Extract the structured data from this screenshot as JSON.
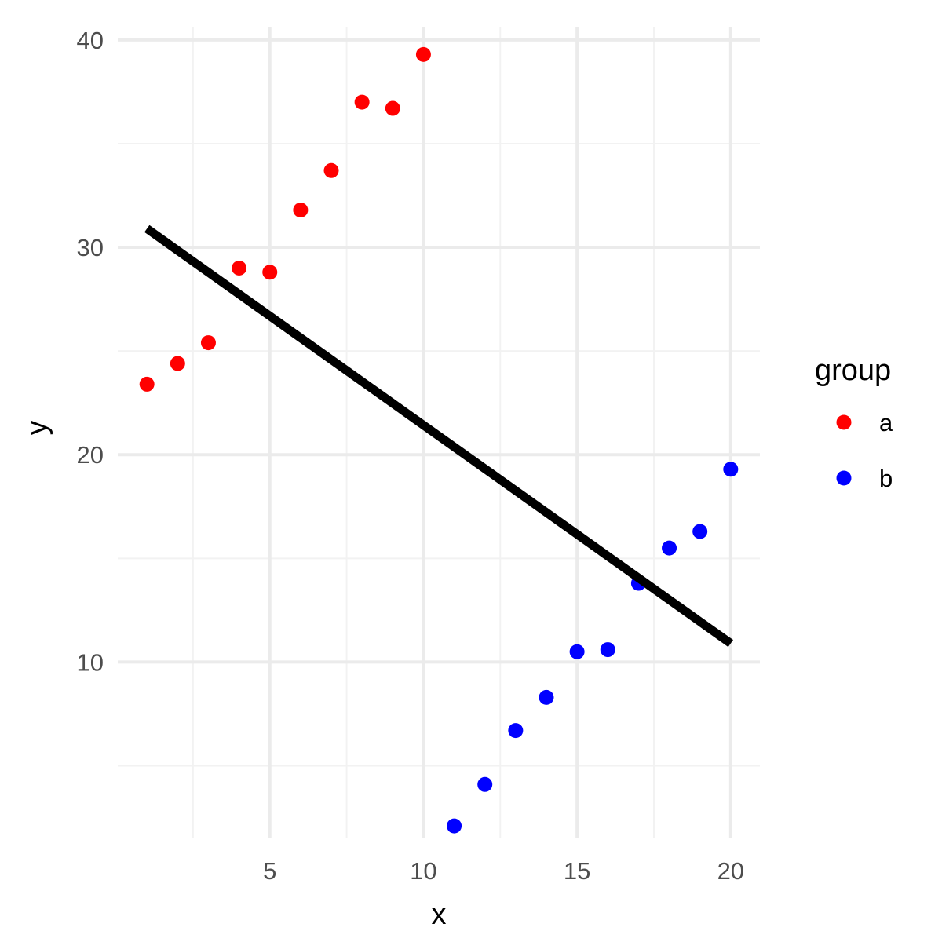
{
  "chart_data": {
    "type": "scatter",
    "xlabel": "x",
    "ylabel": "y",
    "xlim": [
      0.05,
      20.95
    ],
    "ylim": [
      1.5,
      40.6
    ],
    "x_ticks": [
      5,
      10,
      15,
      20
    ],
    "x_tick_labels": [
      "5",
      "10",
      "15",
      "20"
    ],
    "x_minor_ticks": [
      2.5,
      7.5,
      12.5,
      17.5
    ],
    "y_ticks": [
      10,
      20,
      30,
      40
    ],
    "y_tick_labels": [
      "10",
      "20",
      "30",
      "40"
    ],
    "y_minor_ticks": [
      5,
      15,
      25,
      35
    ],
    "grid": true,
    "legend": {
      "title": "group",
      "position": "right",
      "entries": [
        {
          "label": "a",
          "color": "#ff0000"
        },
        {
          "label": "b",
          "color": "#0000ff"
        }
      ]
    },
    "series": [
      {
        "name": "a",
        "color": "#ff0000",
        "x": [
          1,
          2,
          3,
          4,
          5,
          6,
          7,
          8,
          9,
          10
        ],
        "y": [
          23.4,
          24.4,
          25.4,
          29.0,
          28.8,
          31.8,
          33.7,
          37.0,
          36.7,
          39.3
        ]
      },
      {
        "name": "b",
        "color": "#0000ff",
        "x": [
          11,
          12,
          13,
          14,
          15,
          16,
          17,
          18,
          19,
          20
        ],
        "y": [
          2.1,
          4.1,
          6.7,
          8.3,
          10.5,
          10.6,
          13.8,
          15.5,
          16.3,
          19.3
        ]
      }
    ],
    "trend_line": {
      "color": "#000000",
      "x": [
        1,
        20
      ],
      "y": [
        30.9,
        10.9
      ]
    }
  },
  "colors": {
    "background": "#ffffff",
    "grid_major": "#ebebeb",
    "grid_minor": "#f2f2f2",
    "tick_text": "#4d4d4d"
  }
}
